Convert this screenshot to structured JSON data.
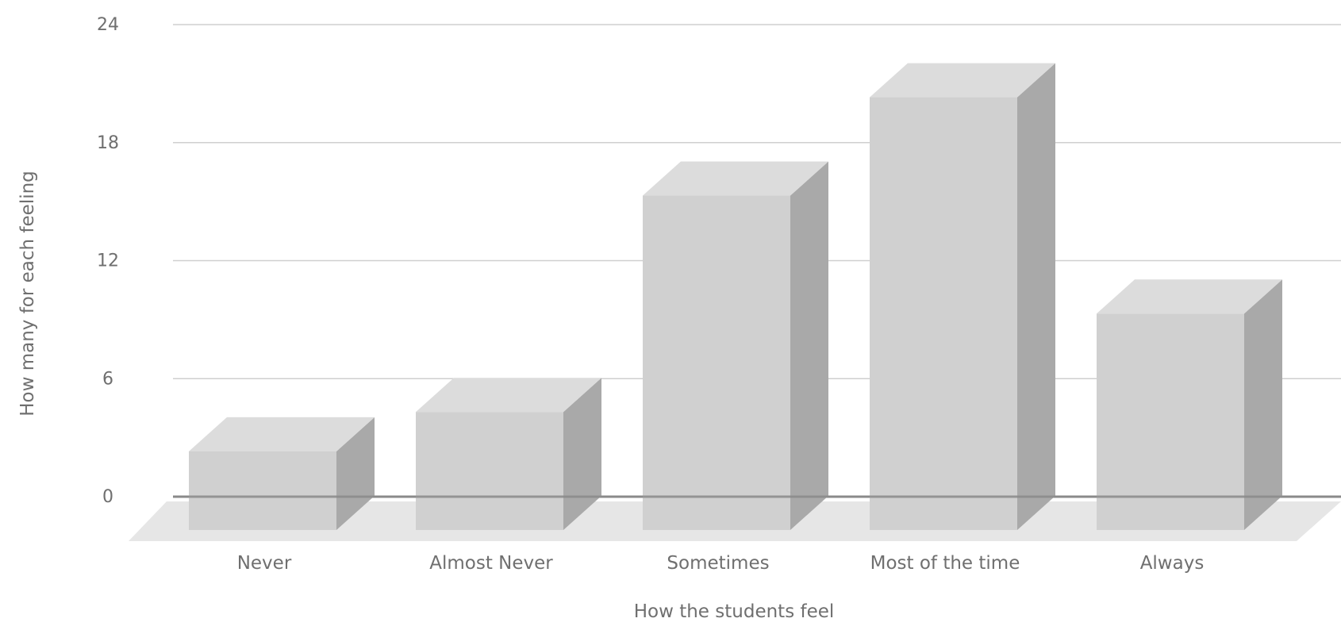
{
  "chart_data": {
    "type": "bar",
    "style": "3d",
    "title": "",
    "xlabel": "How the students feel",
    "ylabel": "How many for each feeling",
    "categories": [
      "Never",
      "Almost Never",
      "Sometimes",
      "Most of the time",
      "Always"
    ],
    "values": [
      4,
      6,
      17,
      22,
      11
    ],
    "ylim": [
      0,
      24
    ],
    "yticks": [
      0,
      6,
      12,
      18,
      24
    ],
    "grid": true,
    "legend": "none",
    "colors": {
      "bar_front": "#d0d0d0",
      "bar_top": "#dcdcdc",
      "bar_side": "#a9a9a9",
      "floor": "#e6e6e6",
      "gridline": "#cfcfcf",
      "baseline": "#8a8a8a",
      "text": "#6f6f6f"
    }
  }
}
